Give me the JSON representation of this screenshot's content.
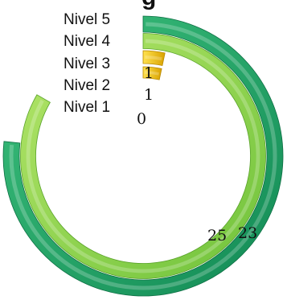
{
  "chart_data": {
    "type": "radial-bar",
    "title_fragment": "g",
    "max_value": 30,
    "series": [
      {
        "name": "Nivel 5",
        "value": 23,
        "color": "#1fa868",
        "label": "23"
      },
      {
        "name": "Nivel 4",
        "value": 25,
        "color": "#8fd34d",
        "label": "25"
      },
      {
        "name": "Nivel 3",
        "value": 1,
        "color": "#f2c200",
        "label": "1"
      },
      {
        "name": "Nivel 2",
        "value": 1,
        "color": "#f2c200",
        "label": "1"
      },
      {
        "name": "Nivel 1",
        "value": 0,
        "color": "#d9e8b0",
        "label": "0"
      }
    ]
  }
}
